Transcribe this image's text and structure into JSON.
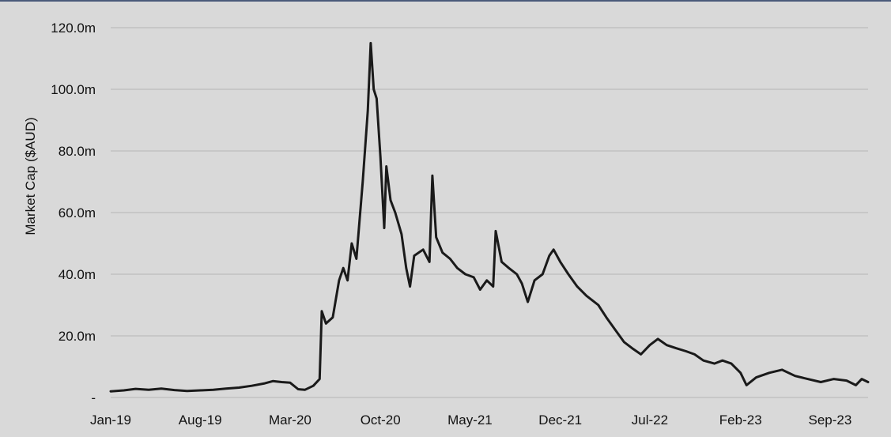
{
  "chart_data": {
    "type": "line",
    "title": "",
    "xlabel": "",
    "ylabel": "Market Cap ($AUD)",
    "ylim": [
      0,
      120
    ],
    "y_ticks": [
      {
        "value": 0,
        "label": "-"
      },
      {
        "value": 20,
        "label": "20.0m"
      },
      {
        "value": 40,
        "label": "40.0m"
      },
      {
        "value": 60,
        "label": "60.0m"
      },
      {
        "value": 80,
        "label": "80.0m"
      },
      {
        "value": 100,
        "label": "100.0m"
      },
      {
        "value": 120,
        "label": "120.0m"
      }
    ],
    "xlim": [
      "2019-01-01",
      "2023-11-30"
    ],
    "x_ticks": [
      {
        "date": "2019-01-01",
        "label": "Jan-19"
      },
      {
        "date": "2019-08-01",
        "label": "Aug-19"
      },
      {
        "date": "2020-03-01",
        "label": "Mar-20"
      },
      {
        "date": "2020-10-01",
        "label": "Oct-20"
      },
      {
        "date": "2021-05-01",
        "label": "May-21"
      },
      {
        "date": "2021-12-01",
        "label": "Dec-21"
      },
      {
        "date": "2022-07-01",
        "label": "Jul-22"
      },
      {
        "date": "2023-02-01",
        "label": "Feb-23"
      },
      {
        "date": "2023-09-01",
        "label": "Sep-23"
      }
    ],
    "grid": "horizontal",
    "legend": "none",
    "series": [
      {
        "color": "#1a1a1a",
        "points": [
          [
            "2019-01-01",
            2.0
          ],
          [
            "2019-02-01",
            2.3
          ],
          [
            "2019-03-01",
            2.8
          ],
          [
            "2019-04-01",
            2.5
          ],
          [
            "2019-05-01",
            2.9
          ],
          [
            "2019-06-01",
            2.4
          ],
          [
            "2019-07-01",
            2.1
          ],
          [
            "2019-08-01",
            2.3
          ],
          [
            "2019-09-01",
            2.5
          ],
          [
            "2019-10-01",
            2.9
          ],
          [
            "2019-11-01",
            3.2
          ],
          [
            "2019-12-01",
            3.8
          ],
          [
            "2020-01-01",
            4.6
          ],
          [
            "2020-01-20",
            5.3
          ],
          [
            "2020-02-10",
            5.0
          ],
          [
            "2020-03-01",
            4.8
          ],
          [
            "2020-03-20",
            2.7
          ],
          [
            "2020-04-05",
            2.5
          ],
          [
            "2020-04-25",
            3.8
          ],
          [
            "2020-05-10",
            6.0
          ],
          [
            "2020-05-15",
            28.0
          ],
          [
            "2020-05-25",
            24.0
          ],
          [
            "2020-06-10",
            26.0
          ],
          [
            "2020-06-25",
            38.0
          ],
          [
            "2020-07-05",
            42.0
          ],
          [
            "2020-07-15",
            38.0
          ],
          [
            "2020-07-25",
            50.0
          ],
          [
            "2020-08-05",
            45.0
          ],
          [
            "2020-08-20",
            70.0
          ],
          [
            "2020-09-01",
            93.0
          ],
          [
            "2020-09-08",
            115.0
          ],
          [
            "2020-09-15",
            100.0
          ],
          [
            "2020-09-22",
            97.0
          ],
          [
            "2020-10-01",
            78.0
          ],
          [
            "2020-10-10",
            55.0
          ],
          [
            "2020-10-15",
            75.0
          ],
          [
            "2020-10-25",
            64.0
          ],
          [
            "2020-11-05",
            60.0
          ],
          [
            "2020-11-20",
            53.0
          ],
          [
            "2020-12-01",
            42.0
          ],
          [
            "2020-12-10",
            36.0
          ],
          [
            "2020-12-20",
            46.0
          ],
          [
            "2021-01-10",
            48.0
          ],
          [
            "2021-01-25",
            44.0
          ],
          [
            "2021-02-01",
            72.0
          ],
          [
            "2021-02-10",
            52.0
          ],
          [
            "2021-02-25",
            47.0
          ],
          [
            "2021-03-15",
            45.0
          ],
          [
            "2021-04-01",
            42.0
          ],
          [
            "2021-04-20",
            40.0
          ],
          [
            "2021-05-10",
            39.0
          ],
          [
            "2021-05-25",
            35.0
          ],
          [
            "2021-06-10",
            38.0
          ],
          [
            "2021-06-25",
            36.0
          ],
          [
            "2021-07-01",
            54.0
          ],
          [
            "2021-07-15",
            44.0
          ],
          [
            "2021-08-01",
            42.0
          ],
          [
            "2021-08-20",
            40.0
          ],
          [
            "2021-09-01",
            37.0
          ],
          [
            "2021-09-15",
            31.0
          ],
          [
            "2021-10-01",
            38.0
          ],
          [
            "2021-10-20",
            40.0
          ],
          [
            "2021-11-05",
            46.0
          ],
          [
            "2021-11-15",
            48.0
          ],
          [
            "2021-12-01",
            44.0
          ],
          [
            "2021-12-20",
            40.0
          ],
          [
            "2022-01-10",
            36.0
          ],
          [
            "2022-02-01",
            33.0
          ],
          [
            "2022-03-01",
            30.0
          ],
          [
            "2022-03-20",
            26.0
          ],
          [
            "2022-04-10",
            22.0
          ],
          [
            "2022-05-01",
            18.0
          ],
          [
            "2022-05-20",
            16.0
          ],
          [
            "2022-06-10",
            14.0
          ],
          [
            "2022-07-01",
            17.0
          ],
          [
            "2022-07-20",
            19.0
          ],
          [
            "2022-08-10",
            17.0
          ],
          [
            "2022-09-01",
            16.0
          ],
          [
            "2022-09-25",
            15.0
          ],
          [
            "2022-10-15",
            14.0
          ],
          [
            "2022-11-05",
            12.0
          ],
          [
            "2022-12-01",
            11.0
          ],
          [
            "2022-12-20",
            12.0
          ],
          [
            "2023-01-10",
            11.0
          ],
          [
            "2023-02-01",
            8.0
          ],
          [
            "2023-02-15",
            4.0
          ],
          [
            "2023-03-10",
            6.5
          ],
          [
            "2023-04-10",
            8.0
          ],
          [
            "2023-05-10",
            9.0
          ],
          [
            "2023-06-10",
            7.0
          ],
          [
            "2023-07-10",
            6.0
          ],
          [
            "2023-08-10",
            5.0
          ],
          [
            "2023-09-10",
            6.0
          ],
          [
            "2023-10-10",
            5.5
          ],
          [
            "2023-11-01",
            4.0
          ],
          [
            "2023-11-15",
            6.0
          ],
          [
            "2023-11-30",
            5.0
          ]
        ]
      }
    ]
  }
}
